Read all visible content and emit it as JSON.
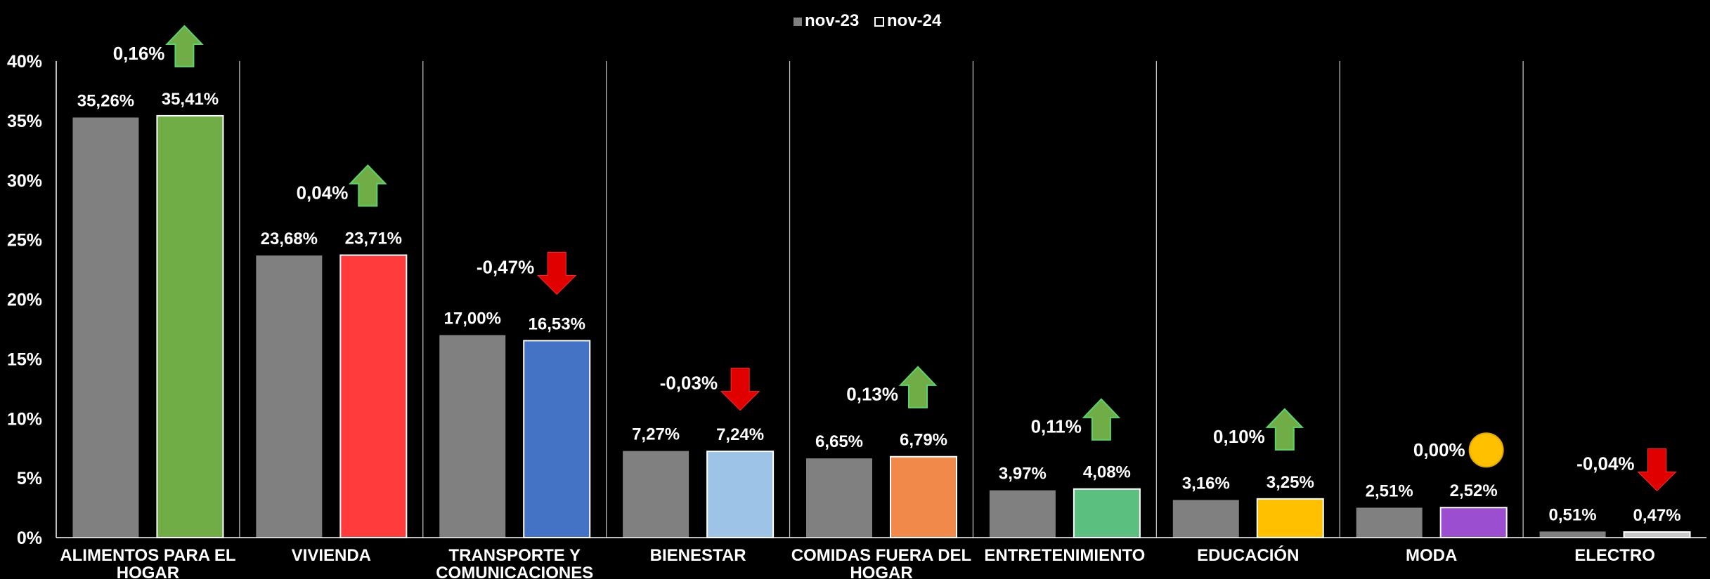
{
  "chart_data": {
    "type": "bar",
    "title": "",
    "xlabel": "",
    "ylabel": "",
    "ylim": [
      0,
      40
    ],
    "yticks": [
      "0%",
      "5%",
      "10%",
      "15%",
      "20%",
      "25%",
      "30%",
      "35%",
      "40%"
    ],
    "legend_position": "top-center",
    "categories": [
      [
        "ALIMENTOS PARA EL",
        "HOGAR"
      ],
      [
        "VIVIENDA"
      ],
      [
        "TRANSPORTE Y",
        "COMUNICACIONES"
      ],
      [
        "BIENESTAR"
      ],
      [
        "COMIDAS FUERA DEL",
        "HOGAR"
      ],
      [
        "ENTRETENIMIENTO"
      ],
      [
        "EDUCACIÓN"
      ],
      [
        "MODA"
      ],
      [
        "ELECTRO"
      ]
    ],
    "series": [
      {
        "name": "nov-23",
        "color": "#808080",
        "values": [
          35.26,
          23.68,
          17.0,
          7.27,
          6.65,
          3.97,
          3.16,
          2.51,
          0.51
        ],
        "labels": [
          "35,26%",
          "23,68%",
          "17,00%",
          "7,27%",
          "6,65%",
          "3,97%",
          "3,16%",
          "2,51%",
          "0,51%"
        ]
      },
      {
        "name": "nov-24",
        "values": [
          35.41,
          23.71,
          16.53,
          7.24,
          6.79,
          4.08,
          3.25,
          2.52,
          0.47
        ],
        "labels": [
          "35,41%",
          "23,71%",
          "16,53%",
          "7,24%",
          "6,79%",
          "4,08%",
          "3,25%",
          "2,52%",
          "0,47%"
        ],
        "colors": [
          "#70AD47",
          "#FF3B3B",
          "#4472C4",
          "#9DC3E6",
          "#F0894A",
          "#5BBF80",
          "#FFC000",
          "#9B4FD0",
          "#C8C8C8"
        ]
      }
    ],
    "changes": [
      {
        "label": "0,16%",
        "direction": "up"
      },
      {
        "label": "0,04%",
        "direction": "up"
      },
      {
        "label": "-0,47%",
        "direction": "down"
      },
      {
        "label": "-0,03%",
        "direction": "down"
      },
      {
        "label": "0,13%",
        "direction": "up"
      },
      {
        "label": "0,11%",
        "direction": "up"
      },
      {
        "label": "0,10%",
        "direction": "up"
      },
      {
        "label": "0,00%",
        "direction": "neutral"
      },
      {
        "label": "-0,04%",
        "direction": "down"
      }
    ],
    "indicator_colors": {
      "up": "#70AD47",
      "down": "#E00000",
      "neutral": "#FFC000"
    }
  }
}
